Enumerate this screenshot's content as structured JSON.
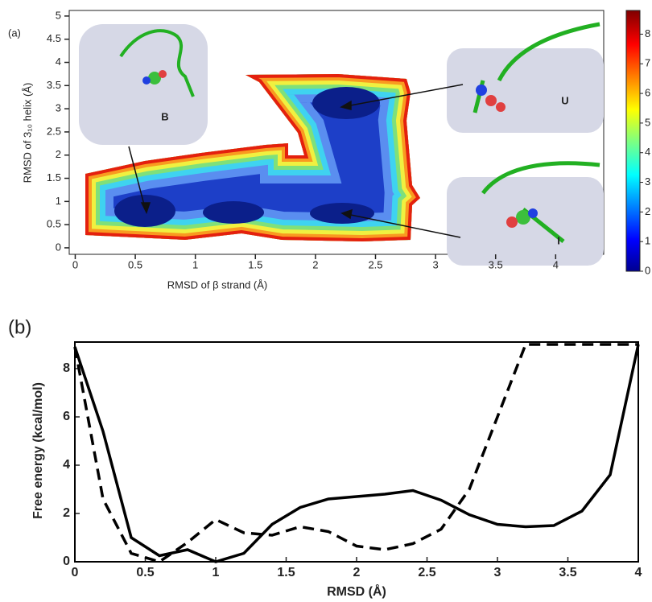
{
  "chart_data": [
    {
      "type": "contour",
      "panel_label": "(a)",
      "xlabel": "RMSD of β strand (Å)",
      "ylabel": "RMSD of 3₁₀ helix (Å)",
      "xlim": [
        -0.05,
        4.4
      ],
      "ylim": [
        -0.14,
        5.12
      ],
      "xticks": [
        0,
        0.5,
        1,
        1.5,
        2,
        2.5,
        3,
        3.5,
        4
      ],
      "yticks": [
        0,
        0.5,
        1,
        1.5,
        2,
        2.5,
        3,
        3.5,
        4,
        4.5,
        5
      ],
      "colorbar": {
        "clim": [
          0,
          8.8
        ],
        "ticks": [
          0,
          1,
          2,
          3,
          4,
          5,
          6,
          7,
          8
        ]
      },
      "annotations": [
        "B",
        "U",
        "I"
      ]
    },
    {
      "type": "line",
      "panel_label": "(b)",
      "xlabel": "RMSD (Å)",
      "ylabel": "Free energy (kcal/mol)",
      "xlim": [
        0,
        4
      ],
      "ylim": [
        0,
        9.1
      ],
      "xticks": [
        0,
        0.5,
        1,
        1.5,
        2,
        2.5,
        3,
        3.5,
        4
      ],
      "yticks": [
        0,
        2,
        4,
        6,
        8
      ],
      "x": [
        0,
        0.2,
        0.4,
        0.6,
        0.8,
        1.0,
        1.2,
        1.4,
        1.6,
        1.8,
        2.0,
        2.2,
        2.4,
        2.6,
        2.8,
        3.0,
        3.2,
        3.4,
        3.6,
        3.8,
        4.0
      ],
      "series": [
        {
          "color": "#000000",
          "line_style": "solid",
          "values": [
            8.9,
            5.4,
            1.0,
            0.25,
            0.5,
            0.0,
            0.35,
            1.55,
            2.25,
            2.6,
            2.7,
            2.8,
            2.95,
            2.55,
            1.95,
            1.55,
            1.45,
            1.5,
            2.1,
            3.6,
            9.0
          ]
        },
        {
          "color": "#000000",
          "line_style": "dashed",
          "values": [
            8.9,
            2.6,
            0.35,
            0.0,
            0.8,
            1.75,
            1.2,
            1.1,
            1.45,
            1.25,
            0.65,
            0.5,
            0.75,
            1.35,
            3.0,
            6.0,
            9.0,
            9.0,
            9.0,
            9.0,
            9.0
          ]
        }
      ]
    }
  ]
}
